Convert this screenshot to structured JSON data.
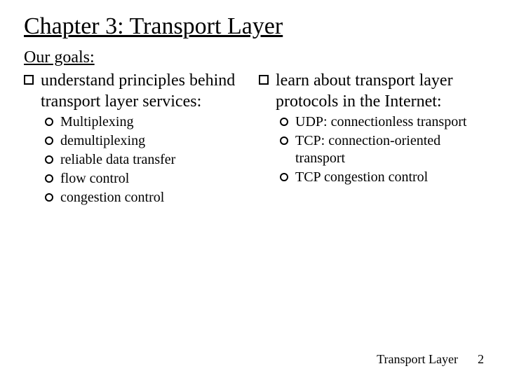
{
  "title": "Chapter 3: Transport Layer",
  "subtitle": "Our goals:",
  "left": {
    "main": "understand principles behind transport layer services:",
    "items": [
      "Multiplexing",
      "demultiplexing",
      "reliable data transfer",
      "flow control",
      "congestion control"
    ]
  },
  "right": {
    "main": "learn about transport layer protocols in the Internet:",
    "items": [
      "UDP: connectionless transport",
      "TCP: connection-oriented transport",
      "TCP congestion control"
    ]
  },
  "footer": {
    "label": "Transport Layer",
    "page": "2"
  },
  "style": {
    "title_fontsize": 34,
    "body_fontsize": 24,
    "sub_fontsize": 20,
    "footer_fontsize": 18,
    "text_color": "#000000",
    "background_color": "#ffffff",
    "font_family": "Comic Sans MS"
  }
}
